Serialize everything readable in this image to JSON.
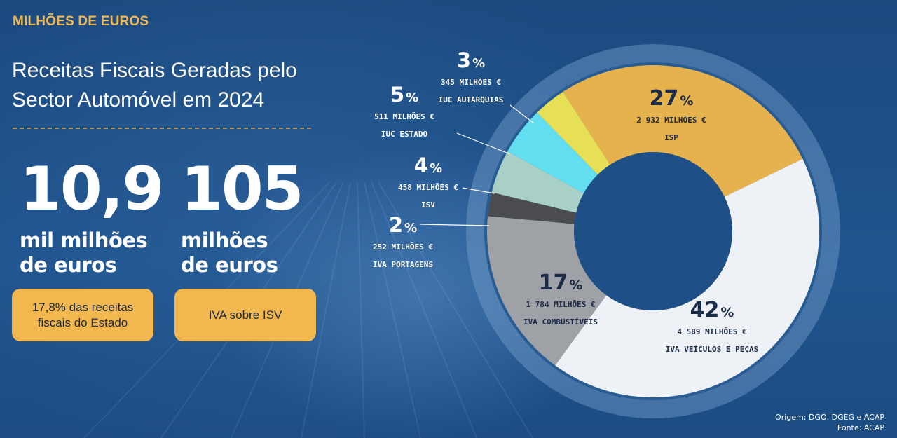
{
  "kicker": "MILHÕES DE EUROS",
  "title": "Receitas Fiscais Geradas pelo Sector Automóvel em 2024",
  "stats": [
    {
      "value": "10,9",
      "unit_line1": "mil milhões",
      "unit_line2": "de euros",
      "note": "17,8% das receitas fiscais do Estado"
    },
    {
      "value": "105",
      "unit_line1": "milhões",
      "unit_line2": "de euros",
      "note": "IVA sobre ISV"
    }
  ],
  "chart_data": {
    "type": "pie",
    "variant": "donut",
    "unit": "milhões €",
    "series": [
      {
        "label": "ISP",
        "percent_label": "27",
        "percent_value": 27,
        "amount_label": "2 932 MILHÕES €",
        "value": 2932,
        "color": "#e6b24e"
      },
      {
        "label": "IVA VEÍCULOS E PEÇAS",
        "percent_label": "42",
        "percent_value": 42,
        "amount_label": "4 589 MILHÕES €",
        "value": 4589,
        "color": "#eef1f6"
      },
      {
        "label": "IVA COMBUSTÍVEIS",
        "percent_label": "17",
        "percent_value": 17,
        "amount_label": "1 784 MILHÕES €",
        "value": 1784,
        "color": "#9ea1a6"
      },
      {
        "label": "IVA PORTAGENS",
        "percent_label": "2",
        "percent_value": 2,
        "amount_label": "252 MILHÕES €",
        "value": 252,
        "color": "#4a4c50"
      },
      {
        "label": "ISV",
        "percent_label": "4",
        "percent_value": 4,
        "amount_label": "458 MILHÕES €",
        "value": 458,
        "color": "#a9d0c6"
      },
      {
        "label": "IUC ESTADO",
        "percent_label": "5",
        "percent_value": 5,
        "amount_label": "511 MILHÕES €",
        "value": 511,
        "color": "#63def0"
      },
      {
        "label": "IUC AUTARQUIAS",
        "percent_label": "3",
        "percent_value": 3,
        "amount_label": "345 MILHÕES €",
        "value": 345,
        "color": "#e7df55"
      }
    ],
    "percent_sign": "%"
  },
  "source": {
    "line1": "Origem: DGO, DGEG e ACAP",
    "line2": "Fonte: ACAP"
  }
}
